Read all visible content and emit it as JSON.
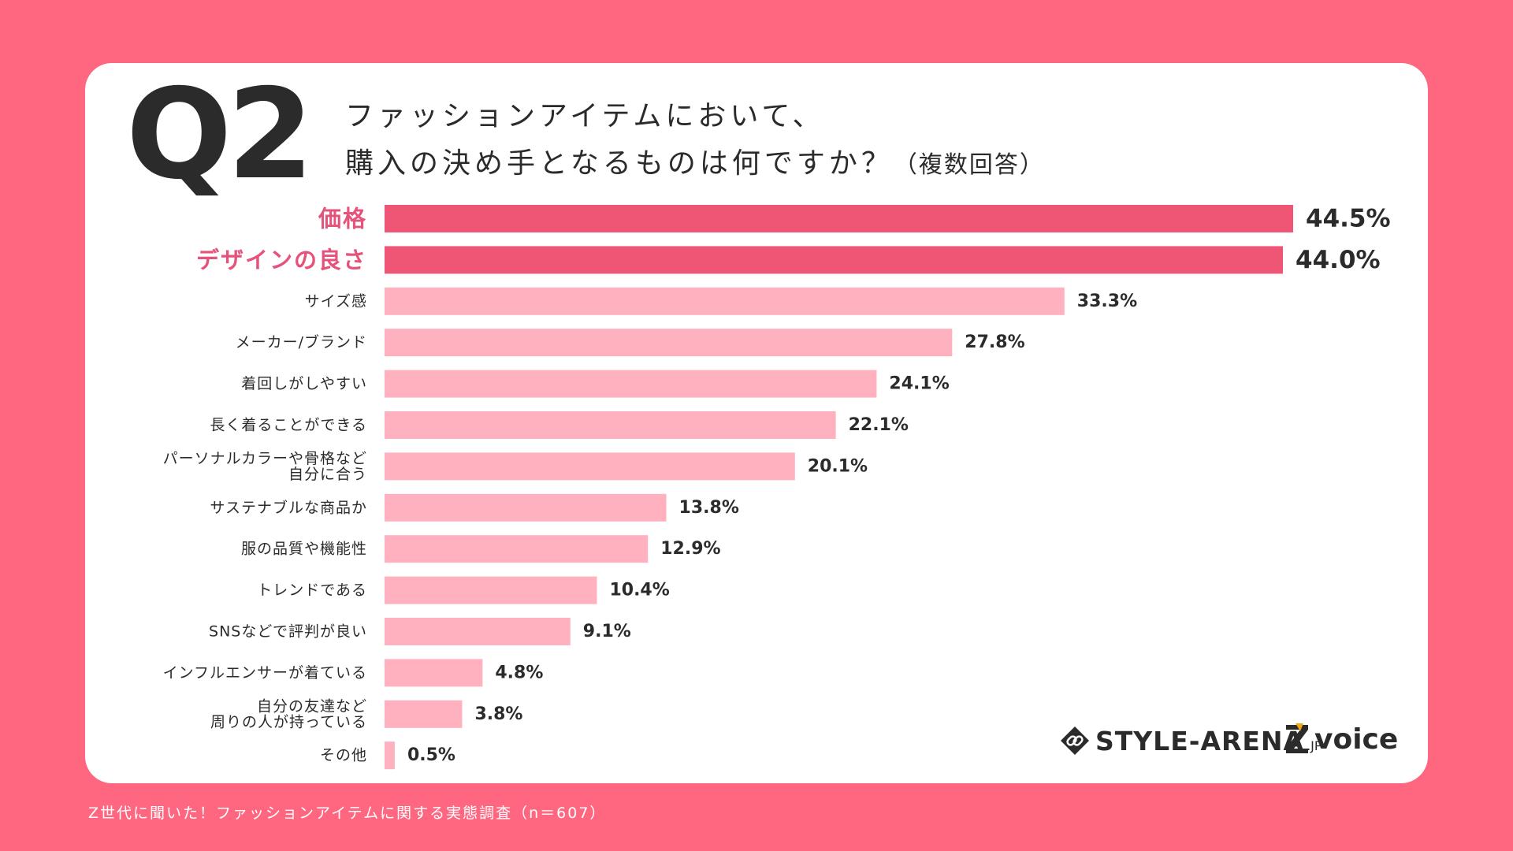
{
  "header": {
    "question": "Q2",
    "title_line1": "ファッションアイテムにおいて、",
    "title_line2": "購入の決め手となるものは何ですか？",
    "title_note": "（複数回答）"
  },
  "footer": {
    "source": "Z世代に聞いた！ファッションアイテムに関する実態調査（n＝607）"
  },
  "logos": {
    "style_arena": "STYLE-ARENA",
    "style_arena_suffix": ".JP",
    "zvoice": "voice"
  },
  "colors": {
    "background": "#ff6680",
    "highlight_bar": "#ef5676",
    "normal_bar": "#ffb1bf",
    "highlight_label": "#e5527a",
    "text": "#2b2b2b"
  },
  "chart_data": {
    "type": "bar",
    "orientation": "horizontal",
    "title": "ファッションアイテムにおいて、購入の決め手となるものは何ですか？（複数回答）",
    "unit": "%",
    "xlim": [
      0,
      44.5
    ],
    "categories": [
      [
        "価格"
      ],
      [
        "デザインの良さ"
      ],
      [
        "サイズ感"
      ],
      [
        "メーカー/ブランド"
      ],
      [
        "着回しがしやすい"
      ],
      [
        "長く着ることができる"
      ],
      [
        "パーソナルカラーや骨格など",
        "自分に合う"
      ],
      [
        "サステナブルな商品か"
      ],
      [
        "服の品質や機能性"
      ],
      [
        "トレンドである"
      ],
      [
        "SNSなどで評判が良い"
      ],
      [
        "インフルエンサーが着ている"
      ],
      [
        "自分の友達など",
        "周りの人が持っている"
      ],
      [
        "その他"
      ]
    ],
    "values": [
      44.5,
      44.0,
      33.3,
      27.8,
      24.1,
      22.1,
      20.1,
      13.8,
      12.9,
      10.4,
      9.1,
      4.8,
      3.8,
      0.5
    ],
    "value_labels": [
      "44.5%",
      "44.0%",
      "33.3%",
      "27.8%",
      "24.1%",
      "22.1%",
      "20.1%",
      "13.8%",
      "12.9%",
      "10.4%",
      "9.1%",
      "4.8%",
      "3.8%",
      "0.5%"
    ],
    "highlighted": [
      true,
      true,
      false,
      false,
      false,
      false,
      false,
      false,
      false,
      false,
      false,
      false,
      false,
      false
    ]
  }
}
